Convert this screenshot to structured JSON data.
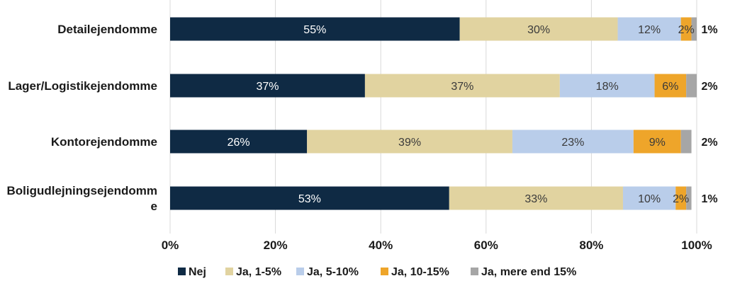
{
  "chart_data": {
    "type": "bar",
    "orientation": "horizontal",
    "stacked": true,
    "categories": [
      [
        "Detailejendomme"
      ],
      [
        "Lager/Logistikejendomme"
      ],
      [
        "Kontorejendomme"
      ],
      [
        "Boligudlejningsejendomm",
        "e"
      ]
    ],
    "series": [
      {
        "name": "Nej",
        "color": "#0f2a44",
        "values": [
          55,
          37,
          26,
          53
        ],
        "labels": [
          "55%",
          "37%",
          "26%",
          "53%"
        ]
      },
      {
        "name": "Ja, 1-5%",
        "color": "#e1d3a0",
        "values": [
          30,
          37,
          39,
          33
        ],
        "labels": [
          "30%",
          "37%",
          "39%",
          "33%"
        ]
      },
      {
        "name": "Ja, 5-10%",
        "color": "#b9cdea",
        "values": [
          12,
          18,
          23,
          10
        ],
        "labels": [
          "12%",
          "18%",
          "23%",
          "10%"
        ]
      },
      {
        "name": "Ja, 10-15%",
        "color": "#eea52a",
        "values": [
          2,
          6,
          9,
          2
        ],
        "labels": [
          "2%",
          "6%",
          "9%",
          "2%"
        ]
      },
      {
        "name": "Ja, mere end 15%",
        "color": "#a6a6a6",
        "values": [
          1,
          2,
          2,
          1
        ],
        "labels": [
          "1%",
          "2%",
          "2%",
          "1%"
        ]
      }
    ],
    "xlim": [
      0,
      100
    ],
    "x_ticks": [
      "0%",
      "20%",
      "40%",
      "60%",
      "80%",
      "100%"
    ],
    "grid": true,
    "legend": "bottom"
  }
}
